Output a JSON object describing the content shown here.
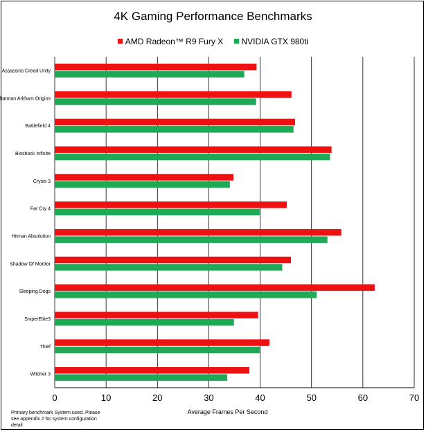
{
  "chart_data": {
    "type": "bar",
    "orientation": "horizontal",
    "title": "4K Gaming Performance Benchmarks",
    "xlabel": "Average Frames Per Second",
    "ylabel": "",
    "xlim": [
      0,
      70
    ],
    "xticks": [
      "0",
      "10",
      "20",
      "30",
      "40",
      "50",
      "60",
      "70"
    ],
    "grid": true,
    "legend_position": "top",
    "categories": [
      "Assassins Creed Unity",
      "Batman Arkham Origins",
      "Battlefield 4",
      "Bioshock Infinite",
      "Crysis 3",
      "Far Cry 4",
      "Hitman Absolution",
      "Shadow Of Mordor",
      "Sleeping Dogs",
      "SniperElite3",
      "Thief",
      "Witcher 3"
    ],
    "series": [
      {
        "name": "AMD Radeon™ R9 Fury X",
        "color": "#ee1111",
        "values": [
          39.3,
          46.1,
          46.8,
          53.9,
          34.8,
          45.2,
          55.8,
          46.0,
          62.3,
          39.6,
          41.8,
          37.9
        ]
      },
      {
        "name": "NVIDIA GTX 980ti",
        "color": "#1fa855",
        "values": [
          36.9,
          39.2,
          46.5,
          53.6,
          34.1,
          39.9,
          53.1,
          44.3,
          51.0,
          34.9,
          39.9,
          33.6
        ]
      }
    ]
  },
  "footnote": "Primary benchmark System used.  Please see appendix 2 for system configuration detail"
}
